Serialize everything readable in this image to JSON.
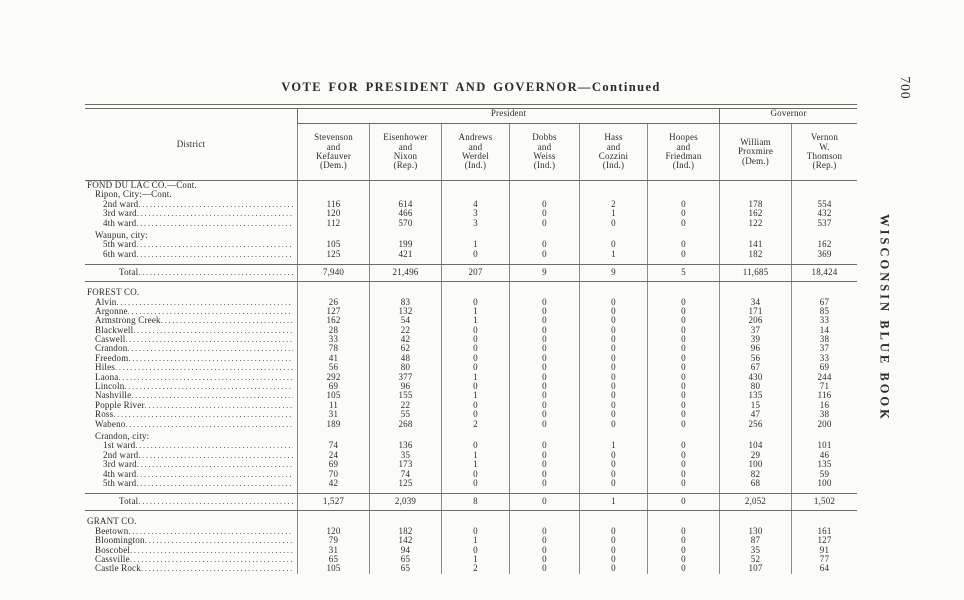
{
  "page": {
    "title": "VOTE FOR PRESIDENT AND GOVERNOR—Continued",
    "page_number": "700",
    "side_text": "WISCONSIN BLUE BOOK"
  },
  "table": {
    "district_header": "District",
    "groups": [
      {
        "label": "President",
        "span": 6
      },
      {
        "label": "Governor",
        "span": 2
      }
    ],
    "columns": [
      {
        "lines": [
          "Stevenson",
          "and",
          "Kefauver",
          "(Dem.)"
        ]
      },
      {
        "lines": [
          "Eisenhower",
          "and",
          "Nixon",
          "(Rep.)"
        ]
      },
      {
        "lines": [
          "Andrews",
          "and",
          "Werdel",
          "(Ind.)"
        ]
      },
      {
        "lines": [
          "Dobbs",
          "and",
          "Weiss",
          "(Ind.)"
        ]
      },
      {
        "lines": [
          "Hass",
          "and",
          "Cozzini",
          "(Ind.)"
        ]
      },
      {
        "lines": [
          "Hoopes",
          "and",
          "Friedman",
          "(Ind.)"
        ]
      },
      {
        "lines": [
          "William",
          "Proxmire",
          "(Dem.)"
        ]
      },
      {
        "lines": [
          "Vernon",
          "W.",
          "Thomson",
          "(Rep.)"
        ]
      }
    ],
    "rows": [
      {
        "t": "county",
        "label": "FOND DU LAC CO.—Cont."
      },
      {
        "t": "sub",
        "label": "Ripon, City:—Cont."
      },
      {
        "t": "d",
        "label": "2nd ward",
        "ind": 2,
        "v": [
          "116",
          "614",
          "4",
          "0",
          "2",
          "0",
          "178",
          "554"
        ]
      },
      {
        "t": "d",
        "label": "3rd ward",
        "ind": 2,
        "v": [
          "120",
          "466",
          "3",
          "0",
          "1",
          "0",
          "162",
          "432"
        ]
      },
      {
        "t": "d",
        "label": "4th ward",
        "ind": 2,
        "v": [
          "112",
          "570",
          "3",
          "0",
          "0",
          "0",
          "122",
          "537"
        ]
      },
      {
        "t": "sub",
        "label": "Waupun, city:",
        "gap": 3
      },
      {
        "t": "d",
        "label": "5th ward",
        "ind": 2,
        "v": [
          "105",
          "199",
          "1",
          "0",
          "0",
          "0",
          "141",
          "162"
        ]
      },
      {
        "t": "d",
        "label": "6th ward",
        "ind": 2,
        "v": [
          "125",
          "421",
          "0",
          "0",
          "1",
          "0",
          "182",
          "369"
        ]
      },
      {
        "t": "total",
        "label": "Total",
        "gap": 5,
        "v": [
          "7,940",
          "21,496",
          "207",
          "9",
          "9",
          "5",
          "11,685",
          "18,424"
        ]
      },
      {
        "t": "county",
        "label": "FOREST CO.",
        "gap": 6
      },
      {
        "t": "d",
        "label": "Alvin",
        "ind": 1,
        "v": [
          "26",
          "83",
          "0",
          "0",
          "0",
          "0",
          "34",
          "67"
        ]
      },
      {
        "t": "d",
        "label": "Argonne",
        "ind": 1,
        "v": [
          "127",
          "132",
          "1",
          "0",
          "0",
          "0",
          "171",
          "85"
        ]
      },
      {
        "t": "d",
        "label": "Armstrong Creek",
        "ind": 1,
        "v": [
          "162",
          "54",
          "1",
          "0",
          "0",
          "0",
          "206",
          "33"
        ]
      },
      {
        "t": "d",
        "label": "Blackwell",
        "ind": 1,
        "v": [
          "28",
          "22",
          "0",
          "0",
          "0",
          "0",
          "37",
          "14"
        ]
      },
      {
        "t": "d",
        "label": "Caswell",
        "ind": 1,
        "v": [
          "33",
          "42",
          "0",
          "0",
          "0",
          "0",
          "39",
          "38"
        ]
      },
      {
        "t": "d",
        "label": "Crandon",
        "ind": 1,
        "v": [
          "78",
          "62",
          "0",
          "0",
          "0",
          "0",
          "96",
          "37"
        ]
      },
      {
        "t": "d",
        "label": "Freedom",
        "ind": 1,
        "v": [
          "41",
          "48",
          "0",
          "0",
          "0",
          "0",
          "56",
          "33"
        ]
      },
      {
        "t": "d",
        "label": "Hiles",
        "ind": 1,
        "v": [
          "56",
          "80",
          "0",
          "0",
          "0",
          "0",
          "67",
          "69"
        ]
      },
      {
        "t": "d",
        "label": "Laona",
        "ind": 1,
        "v": [
          "292",
          "377",
          "1",
          "0",
          "0",
          "0",
          "430",
          "244"
        ]
      },
      {
        "t": "d",
        "label": "Lincoln",
        "ind": 1,
        "v": [
          "69",
          "96",
          "0",
          "0",
          "0",
          "0",
          "80",
          "71"
        ]
      },
      {
        "t": "d",
        "label": "Nashville",
        "ind": 1,
        "v": [
          "105",
          "155",
          "1",
          "0",
          "0",
          "0",
          "135",
          "116"
        ]
      },
      {
        "t": "d",
        "label": "Popple River",
        "ind": 1,
        "v": [
          "11",
          "22",
          "0",
          "0",
          "0",
          "0",
          "15",
          "16"
        ]
      },
      {
        "t": "d",
        "label": "Ross",
        "ind": 1,
        "v": [
          "31",
          "55",
          "0",
          "0",
          "0",
          "0",
          "47",
          "38"
        ]
      },
      {
        "t": "d",
        "label": "Wabeno",
        "ind": 1,
        "v": [
          "189",
          "268",
          "2",
          "0",
          "0",
          "0",
          "256",
          "200"
        ]
      },
      {
        "t": "sub",
        "label": "Crandon, city:",
        "gap": 3
      },
      {
        "t": "d",
        "label": "1st ward",
        "ind": 2,
        "v": [
          "74",
          "136",
          "0",
          "0",
          "1",
          "0",
          "104",
          "101"
        ]
      },
      {
        "t": "d",
        "label": "2nd ward",
        "ind": 2,
        "v": [
          "24",
          "35",
          "1",
          "0",
          "0",
          "0",
          "29",
          "46"
        ]
      },
      {
        "t": "d",
        "label": "3rd ward",
        "ind": 2,
        "v": [
          "69",
          "173",
          "1",
          "0",
          "0",
          "0",
          "100",
          "135"
        ]
      },
      {
        "t": "d",
        "label": "4th ward",
        "ind": 2,
        "v": [
          "70",
          "74",
          "0",
          "0",
          "0",
          "0",
          "82",
          "59"
        ]
      },
      {
        "t": "d",
        "label": "5th ward",
        "ind": 2,
        "v": [
          "42",
          "125",
          "0",
          "0",
          "0",
          "0",
          "68",
          "100"
        ]
      },
      {
        "t": "total",
        "label": "Total",
        "gap": 5,
        "v": [
          "1,527",
          "2,039",
          "8",
          "0",
          "1",
          "0",
          "2,052",
          "1,502"
        ]
      },
      {
        "t": "county",
        "label": "GRANT CO.",
        "gap": 6
      },
      {
        "t": "d",
        "label": "Beetown",
        "ind": 1,
        "v": [
          "120",
          "182",
          "0",
          "0",
          "0",
          "0",
          "130",
          "161"
        ]
      },
      {
        "t": "d",
        "label": "Bloomington",
        "ind": 1,
        "v": [
          "79",
          "142",
          "1",
          "0",
          "0",
          "0",
          "87",
          "127"
        ]
      },
      {
        "t": "d",
        "label": "Boscobel",
        "ind": 1,
        "v": [
          "31",
          "94",
          "0",
          "0",
          "0",
          "0",
          "35",
          "91"
        ]
      },
      {
        "t": "d",
        "label": "Cassville",
        "ind": 1,
        "v": [
          "65",
          "65",
          "1",
          "0",
          "0",
          "0",
          "52",
          "77"
        ]
      },
      {
        "t": "d",
        "label": "Castle Rock",
        "ind": 1,
        "v": [
          "105",
          "65",
          "2",
          "0",
          "0",
          "0",
          "107",
          "64"
        ]
      }
    ]
  }
}
